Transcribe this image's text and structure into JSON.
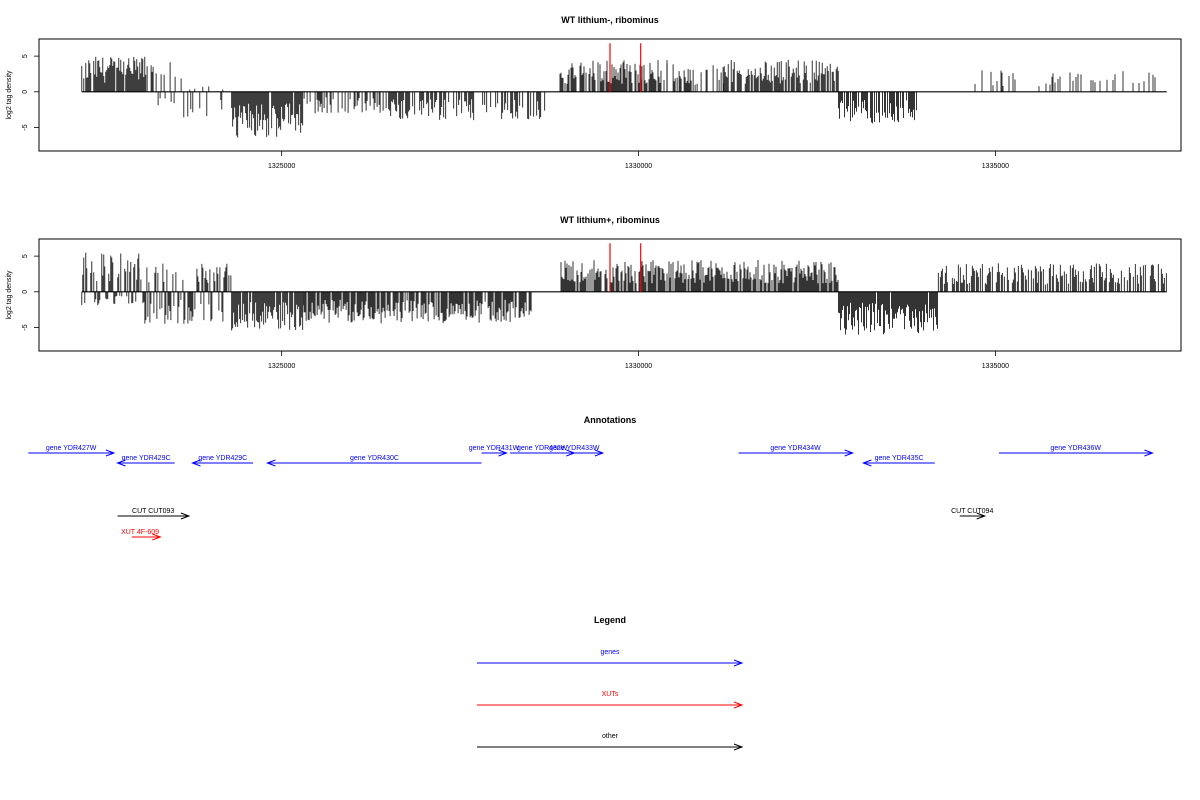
{
  "colors": {
    "genes": "#0000ff",
    "xuts": "#ff0000",
    "other": "#000000",
    "marker": "#ff0000"
  },
  "chart_data": [
    {
      "type": "bar",
      "title": "WT lithium-, ribominus",
      "ylabel": "log2 tag density",
      "xlim": [
        1321600,
        1337600
      ],
      "ylim": [
        -8.3,
        7.4
      ],
      "x_ticks": [
        1325000,
        1330000,
        1335000
      ],
      "x_tick_labels": [
        "1325000",
        "1330000",
        "1335000"
      ],
      "y_ticks": [
        -5,
        0,
        5
      ],
      "y_tick_labels": [
        "-5",
        "0",
        "5"
      ],
      "red_markers": [
        1329600,
        1330030
      ],
      "segments": [
        {
          "x0": 1322200,
          "x1": 1323100,
          "lo": 0,
          "hi": 5.0,
          "density": 0.85
        },
        {
          "x0": 1323100,
          "x1": 1323600,
          "lo": -2,
          "hi": 4.5,
          "density": 0.5
        },
        {
          "x0": 1323600,
          "x1": 1324300,
          "lo": -4,
          "hi": 1,
          "density": 0.4
        },
        {
          "x0": 1324300,
          "x1": 1325300,
          "lo": -6.5,
          "hi": 0,
          "density": 0.95
        },
        {
          "x0": 1325300,
          "x1": 1326500,
          "lo": -3,
          "hi": 0,
          "density": 0.55
        },
        {
          "x0": 1326500,
          "x1": 1328700,
          "lo": -4,
          "hi": 0,
          "density": 0.55
        },
        {
          "x0": 1328900,
          "x1": 1330400,
          "lo": 0,
          "hi": 4.5,
          "density": 0.8
        },
        {
          "x0": 1330400,
          "x1": 1331200,
          "lo": 0,
          "hi": 4.0,
          "density": 0.5
        },
        {
          "x0": 1331200,
          "x1": 1332800,
          "lo": 0,
          "hi": 4.5,
          "density": 0.75
        },
        {
          "x0": 1332800,
          "x1": 1333900,
          "lo": -4.5,
          "hi": 0,
          "density": 0.65
        },
        {
          "x0": 1334700,
          "x1": 1337300,
          "lo": 0,
          "hi": 3.0,
          "density": 0.18
        }
      ]
    },
    {
      "type": "bar",
      "title": "WT lithium+, ribominus",
      "ylabel": "log2 tag density",
      "xlim": [
        1321600,
        1337600
      ],
      "ylim": [
        -8.3,
        7.4
      ],
      "x_ticks": [
        1325000,
        1330000,
        1335000
      ],
      "x_tick_labels": [
        "1325000",
        "1330000",
        "1335000"
      ],
      "y_ticks": [
        -5,
        0,
        5
      ],
      "y_tick_labels": [
        "-5",
        "0",
        "5"
      ],
      "red_markers": [
        1329600,
        1330030
      ],
      "segments": [
        {
          "x0": 1322200,
          "x1": 1323000,
          "lo": -2,
          "hi": 5.5,
          "density": 0.9
        },
        {
          "x0": 1323000,
          "x1": 1324300,
          "lo": -4.5,
          "hi": 4.0,
          "density": 0.8
        },
        {
          "x0": 1324300,
          "x1": 1325300,
          "lo": -5.5,
          "hi": 0,
          "density": 0.95
        },
        {
          "x0": 1325300,
          "x1": 1328500,
          "lo": -4.5,
          "hi": 0,
          "density": 0.85
        },
        {
          "x0": 1328900,
          "x1": 1332800,
          "lo": 0,
          "hi": 4.5,
          "density": 0.85
        },
        {
          "x0": 1332800,
          "x1": 1334200,
          "lo": -6,
          "hi": 0,
          "density": 0.95
        },
        {
          "x0": 1334200,
          "x1": 1337400,
          "lo": 0,
          "hi": 4.0,
          "density": 0.65
        }
      ]
    }
  ],
  "annotations": {
    "title": "Annotations",
    "genes": [
      {
        "label": "gene YDR427W",
        "x0": 1321450,
        "x1": 1322650,
        "dir": "fwd",
        "row": 0
      },
      {
        "label": "gene YDR429C",
        "x0": 1322700,
        "x1": 1323500,
        "dir": "rev",
        "row": 1
      },
      {
        "label": "gene YDR429C",
        "x0": 1323750,
        "x1": 1324600,
        "dir": "rev",
        "row": 1
      },
      {
        "label": "gene YDR430C",
        "x0": 1324800,
        "x1": 1327800,
        "dir": "rev",
        "row": 1
      },
      {
        "label": "gene YDR431W",
        "x0": 1327800,
        "x1": 1328150,
        "dir": "fwd",
        "row": 0
      },
      {
        "label": "gene YDR432W",
        "x0": 1328200,
        "x1": 1329100,
        "dir": "fwd",
        "row": 0
      },
      {
        "label": "gene YDR433W",
        "x0": 1328700,
        "x1": 1329500,
        "dir": "fwd",
        "row": 0
      },
      {
        "label": "gene YDR434W",
        "x0": 1331400,
        "x1": 1333000,
        "dir": "fwd",
        "row": 0
      },
      {
        "label": "gene YDR435C",
        "x0": 1333150,
        "x1": 1334150,
        "dir": "rev",
        "row": 1
      },
      {
        "label": "gene YDR436W",
        "x0": 1335050,
        "x1": 1337200,
        "dir": "fwd",
        "row": 0
      }
    ],
    "others": [
      {
        "label": "CUT CUT093",
        "x0": 1322700,
        "x1": 1323700,
        "dir": "fwd"
      },
      {
        "label": "CUT CUT094",
        "x0": 1334500,
        "x1": 1334850,
        "dir": "fwd"
      }
    ],
    "xuts": [
      {
        "label": "XUT 4F-609",
        "x0": 1322900,
        "x1": 1323300,
        "dir": "fwd"
      }
    ]
  },
  "legend": {
    "title": "Legend",
    "items": [
      {
        "label": "genes",
        "color_key": "genes"
      },
      {
        "label": "XUTs",
        "color_key": "xuts"
      },
      {
        "label": "other",
        "color_key": "other"
      }
    ]
  }
}
